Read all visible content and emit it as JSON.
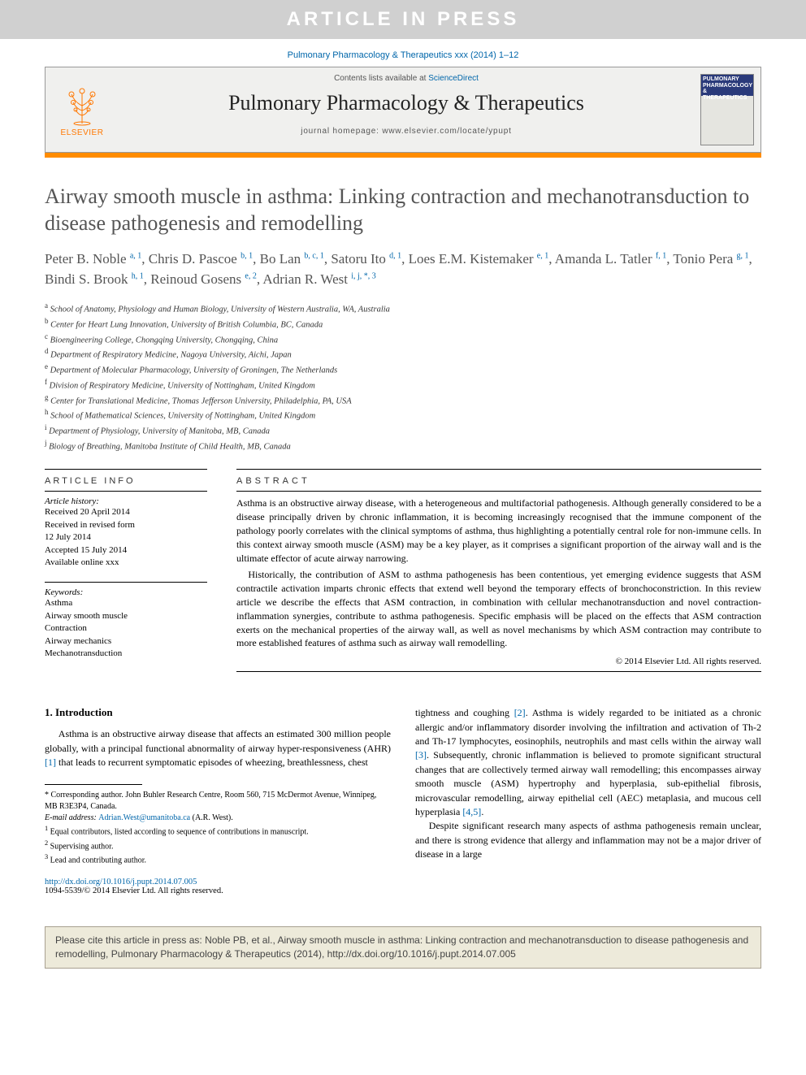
{
  "banner": {
    "text": "ARTICLE IN PRESS",
    "background": "#d0d0d0",
    "color": "#ffffff"
  },
  "citation_header": "Pulmonary Pharmacology & Therapeutics xxx (2014) 1–12",
  "header": {
    "contents_prefix": "Contents lists available at ",
    "contents_link": "ScienceDirect",
    "journal_name": "Pulmonary Pharmacology & Therapeutics",
    "homepage_prefix": "journal homepage: ",
    "homepage_url": "www.elsevier.com/locate/ypupt",
    "elsevier_label": "ELSEVIER",
    "cover_title": "PULMONARY PHARMACOLOGY & THERAPEUTICS"
  },
  "orange_bar_color": "#ff8c00",
  "title": "Airway smooth muscle in asthma: Linking contraction and mechanotransduction to disease pathogenesis and remodelling",
  "authors_html": "Peter B. Noble <sup>a, 1</sup>, Chris D. Pascoe <sup>b, 1</sup>, Bo Lan <sup>b, c, 1</sup>, Satoru Ito <sup>d, 1</sup>, Loes E.M. Kistemaker <sup>e, 1</sup>, Amanda L. Tatler <sup>f, 1</sup>, Tonio Pera <sup>g, 1</sup>, Bindi S. Brook <sup>h, 1</sup>, Reinoud Gosens <sup>e, 2</sup>, Adrian R. West <sup>i, j, *, 3</sup>",
  "affiliations": [
    {
      "key": "a",
      "text": "School of Anatomy, Physiology and Human Biology, University of Western Australia, WA, Australia"
    },
    {
      "key": "b",
      "text": "Center for Heart Lung Innovation, University of British Columbia, BC, Canada"
    },
    {
      "key": "c",
      "text": "Bioengineering College, Chongqing University, Chongqing, China"
    },
    {
      "key": "d",
      "text": "Department of Respiratory Medicine, Nagoya University, Aichi, Japan"
    },
    {
      "key": "e",
      "text": "Department of Molecular Pharmacology, University of Groningen, The Netherlands"
    },
    {
      "key": "f",
      "text": "Division of Respiratory Medicine, University of Nottingham, United Kingdom"
    },
    {
      "key": "g",
      "text": "Center for Translational Medicine, Thomas Jefferson University, Philadelphia, PA, USA"
    },
    {
      "key": "h",
      "text": "School of Mathematical Sciences, University of Nottingham, United Kingdom"
    },
    {
      "key": "i",
      "text": "Department of Physiology, University of Manitoba, MB, Canada"
    },
    {
      "key": "j",
      "text": "Biology of Breathing, Manitoba Institute of Child Health, MB, Canada"
    }
  ],
  "article_info": {
    "heading": "ARTICLE INFO",
    "history_label": "Article history:",
    "history": [
      "Received 20 April 2014",
      "Received in revised form",
      "12 July 2014",
      "Accepted 15 July 2014",
      "Available online xxx"
    ],
    "keywords_label": "Keywords:",
    "keywords": [
      "Asthma",
      "Airway smooth muscle",
      "Contraction",
      "Airway mechanics",
      "Mechanotransduction"
    ]
  },
  "abstract": {
    "heading": "ABSTRACT",
    "paragraphs": [
      "Asthma is an obstructive airway disease, with a heterogeneous and multifactorial pathogenesis. Although generally considered to be a disease principally driven by chronic inflammation, it is becoming increasingly recognised that the immune component of the pathology poorly correlates with the clinical symptoms of asthma, thus highlighting a potentially central role for non-immune cells. In this context airway smooth muscle (ASM) may be a key player, as it comprises a significant proportion of the airway wall and is the ultimate effector of acute airway narrowing.",
      "Historically, the contribution of ASM to asthma pathogenesis has been contentious, yet emerging evidence suggests that ASM contractile activation imparts chronic effects that extend well beyond the temporary effects of bronchoconstriction. In this review article we describe the effects that ASM contraction, in combination with cellular mechanotransduction and novel contraction-inflammation synergies, contribute to asthma pathogenesis. Specific emphasis will be placed on the effects that ASM contraction exerts on the mechanical properties of the airway wall, as well as novel mechanisms by which ASM contraction may contribute to more established features of asthma such as airway wall remodelling."
    ],
    "copyright": "© 2014 Elsevier Ltd. All rights reserved."
  },
  "intro": {
    "heading": "1. Introduction",
    "col1": "Asthma is an obstructive airway disease that affects an estimated 300 million people globally, with a principal functional abnormality of airway hyper-responsiveness (AHR) [1] that leads to recurrent symptomatic episodes of wheezing, breathlessness, chest",
    "col2_p1": "tightness and coughing [2]. Asthma is widely regarded to be initiated as a chronic allergic and/or inflammatory disorder involving the infiltration and activation of Th-2 and Th-17 lymphocytes, eosinophils, neutrophils and mast cells within the airway wall [3]. Subsequently, chronic inflammation is believed to promote significant structural changes that are collectively termed airway wall remodelling; this encompasses airway smooth muscle (ASM) hypertrophy and hyperplasia, sub-epithelial fibrosis, microvascular remodelling, airway epithelial cell (AEC) metaplasia, and mucous cell hyperplasia [4,5].",
    "col2_p2": "Despite significant research many aspects of asthma pathogenesis remain unclear, and there is strong evidence that allergy and inflammation may not be a major driver of disease in a large"
  },
  "footnotes": {
    "corresponding": "* Corresponding author. John Buhler Research Centre, Room 560, 715 McDermot Avenue, Winnipeg, MB R3E3P4, Canada.",
    "email_label": "E-mail address: ",
    "email": "Adrian.West@umanitoba.ca",
    "email_suffix": " (A.R. West).",
    "note1": "1 Equal contributors, listed according to sequence of contributions in manuscript.",
    "note2": "2 Supervising author.",
    "note3": "3 Lead and contributing author."
  },
  "doi": {
    "url": "http://dx.doi.org/10.1016/j.pupt.2014.07.005",
    "issn_line": "1094-5539/© 2014 Elsevier Ltd. All rights reserved."
  },
  "cite_box": "Please cite this article in press as: Noble PB, et al., Airway smooth muscle in asthma: Linking contraction and mechanotransduction to disease pathogenesis and remodelling, Pulmonary Pharmacology & Therapeutics (2014), http://dx.doi.org/10.1016/j.pupt.2014.07.005",
  "colors": {
    "link": "#0066aa",
    "orange": "#ff8c00",
    "banner_bg": "#d0d0d0",
    "cite_bg": "#edeada",
    "cite_border": "#a8a090"
  }
}
